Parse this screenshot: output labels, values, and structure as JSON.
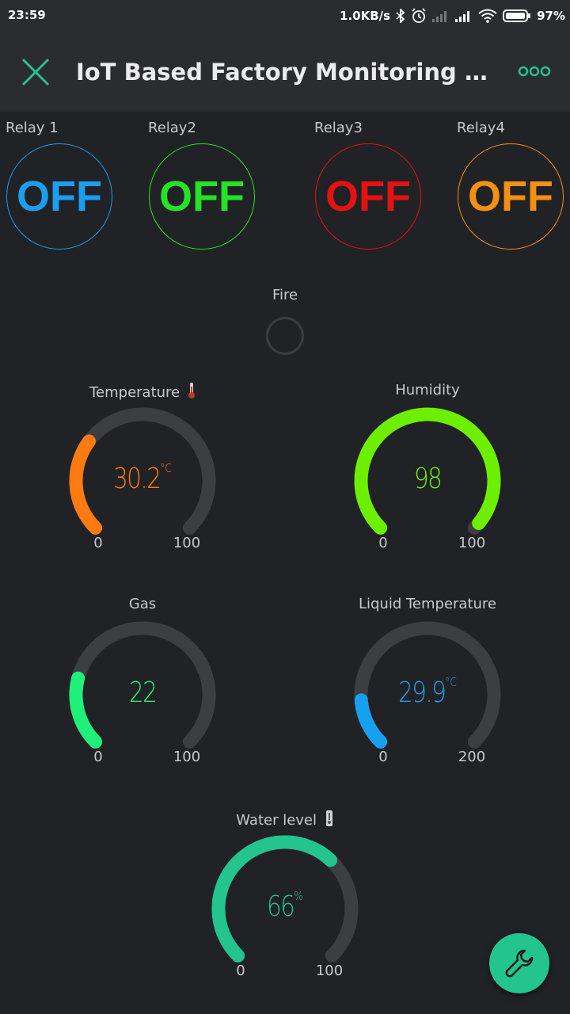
{
  "status_bar": {
    "time": "23:59",
    "network_speed": "1.0KB/s",
    "battery": "97%",
    "icons": [
      "bluetooth-icon",
      "alarm-icon",
      "signal-icon",
      "signal-icon",
      "wifi-icon",
      "battery-icon"
    ]
  },
  "app_bar": {
    "title": "IoT Based Factory Monitoring An…",
    "close_icon": "close-icon",
    "menu_icon": "more-icon",
    "accent": "#23c48e"
  },
  "relays": [
    {
      "label": "Relay 1",
      "state": "OFF",
      "color": "#1a9ef0"
    },
    {
      "label": "Relay2",
      "state": "OFF",
      "color": "#23e424"
    },
    {
      "label": "Relay3",
      "state": "OFF",
      "color": "#e41212"
    },
    {
      "label": "Relay4",
      "state": "OFF",
      "color": "#f39012"
    }
  ],
  "fire": {
    "label": "Fire",
    "on": false
  },
  "gauges": {
    "temperature": {
      "label": "Temperature",
      "value": "30.2",
      "unit": "°C",
      "min": "0",
      "max": "100",
      "level": 30.2,
      "color": "#ff7a10",
      "icon": "thermometer-icon"
    },
    "humidity": {
      "label": "Humidity",
      "value": "98",
      "unit": "",
      "min": "0",
      "max": "100",
      "level": 98,
      "color": "#6cf000"
    },
    "gas": {
      "label": "Gas",
      "value": "22",
      "unit": "",
      "min": "0",
      "max": "100",
      "level": 22,
      "color": "#1ef07a"
    },
    "liquid_temperature": {
      "label": "Liquid Temperature",
      "value": "29.9",
      "unit": "°C",
      "min": "0",
      "max": "200",
      "level": 29.9,
      "color": "#16a0f0"
    },
    "water_level": {
      "label": "Water level",
      "value": "66",
      "unit": "%",
      "min": "0",
      "max": "100",
      "level": 66,
      "color": "#23c48e",
      "icon": "thermometer-icon"
    }
  },
  "fab": {
    "icon": "wrench-icon",
    "color": "#23c48e"
  }
}
